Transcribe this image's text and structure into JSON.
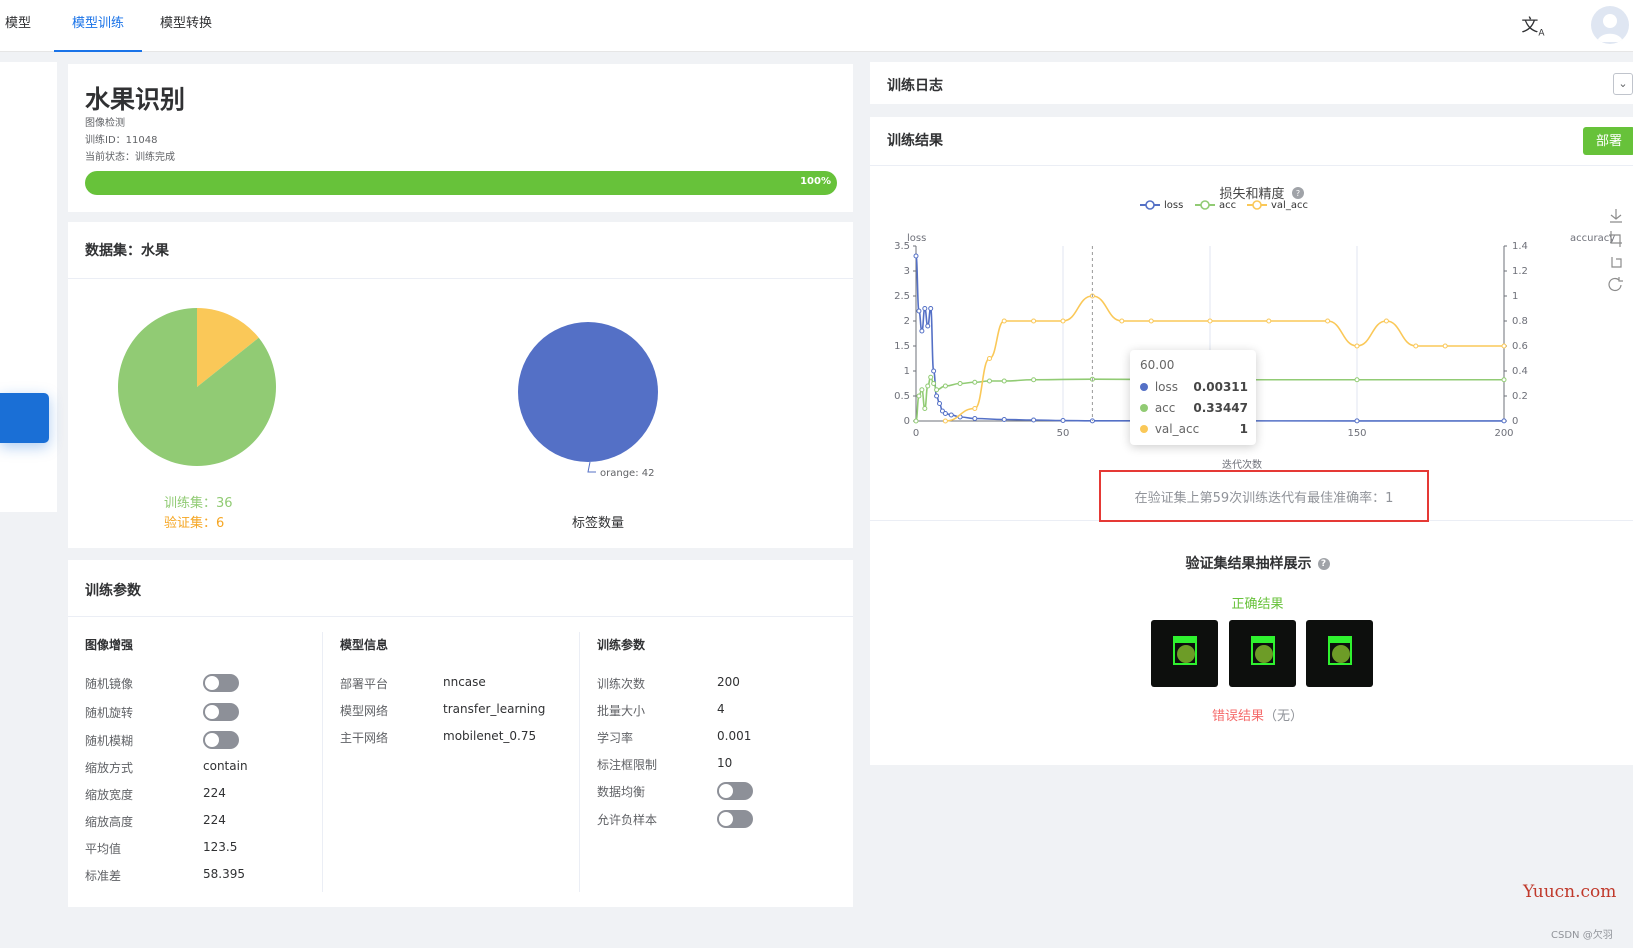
{
  "nav": {
    "tabs": [
      {
        "label": "模型库"
      },
      {
        "label": "模型训练",
        "active": true
      },
      {
        "label": "模型转换"
      }
    ],
    "lang_icon": "translate-icon",
    "avatar_icon": "user-avatar-icon"
  },
  "project": {
    "title": "水果识别",
    "type": "图像检测",
    "train_id": "训练ID：11048",
    "status": "当前状态：训练完成",
    "progress_pct": 100,
    "progress_label": "100%",
    "progress_color": "#67c23a"
  },
  "dataset": {
    "title": "数据集：水果",
    "split_pie": {
      "train": 36,
      "val": 6
    },
    "train_label": "训练集：36",
    "val_label": "验证集：6",
    "label_pie": {
      "slice_label": "orange: 42",
      "value": 42
    },
    "label_chart_title": "标签数量",
    "colors": {
      "train": "#91cb74",
      "val": "#fac858",
      "orange": "#5470c6"
    }
  },
  "params": {
    "title": "训练参数",
    "augment": {
      "title": "图像增强",
      "rows": [
        {
          "label": "随机镜像",
          "toggle": false
        },
        {
          "label": "随机旋转",
          "toggle": false
        },
        {
          "label": "随机模糊",
          "toggle": false
        },
        {
          "label": "缩放方式",
          "value": "contain"
        },
        {
          "label": "缩放宽度",
          "value": "224"
        },
        {
          "label": "缩放高度",
          "value": "224"
        },
        {
          "label": "平均值",
          "value": "123.5"
        },
        {
          "label": "标准差",
          "value": "58.395"
        }
      ]
    },
    "model": {
      "title": "模型信息",
      "rows": [
        {
          "label": "部署平台",
          "value": "nncase"
        },
        {
          "label": "模型网络",
          "value": "transfer_learning"
        },
        {
          "label": "主干网络",
          "value": "mobilenet_0.75"
        }
      ]
    },
    "train": {
      "title": "训练参数",
      "rows": [
        {
          "label": "训练次数",
          "value": "200"
        },
        {
          "label": "批量大小",
          "value": "4"
        },
        {
          "label": "学习率",
          "value": "0.001"
        },
        {
          "label": "标注框限制",
          "value": "10"
        },
        {
          "label": "数据均衡",
          "toggle": false
        },
        {
          "label": "允许负样本",
          "toggle": false
        }
      ]
    }
  },
  "log": {
    "title": "训练日志"
  },
  "result": {
    "title": "训练结果",
    "deploy_label": "部署",
    "best_text": "在验证集上第59次训练迭代有最佳准确率：1",
    "sample_title": "验证集结果抽样展示",
    "correct_label": "正确结果",
    "wrong_label": "错误结果",
    "wrong_suffix": "（无）"
  },
  "chart_data": {
    "type": "line",
    "title": "损失和精度",
    "xlabel": "迭代次数",
    "ylabel_left": "loss",
    "ylabel_right": "accuracy",
    "xlim": [
      0,
      200
    ],
    "ylim_left": [
      0,
      3.5
    ],
    "ylim_right": [
      0,
      1.4
    ],
    "x_ticks": [
      "0",
      "50",
      "100",
      "150",
      "200"
    ],
    "y_ticks_left": [
      "0",
      "0.5",
      "1",
      "1.5",
      "2",
      "2.5",
      "3",
      "3.5"
    ],
    "y_ticks_right": [
      "0",
      "0.2",
      "0.4",
      "0.6",
      "0.8",
      "1",
      "1.2",
      "1.4"
    ],
    "legend": [
      "loss",
      "acc",
      "val_acc"
    ],
    "series": [
      {
        "name": "loss",
        "axis": "left",
        "color": "#5470c6",
        "points": [
          [
            0,
            3.3
          ],
          [
            1,
            2.2
          ],
          [
            2,
            1.8
          ],
          [
            3,
            2.25
          ],
          [
            4,
            1.9
          ],
          [
            5,
            2.25
          ],
          [
            6,
            1.0
          ],
          [
            7,
            0.5
          ],
          [
            8,
            0.35
          ],
          [
            9,
            0.2
          ],
          [
            10,
            0.15
          ],
          [
            12,
            0.12
          ],
          [
            15,
            0.08
          ],
          [
            20,
            0.05
          ],
          [
            30,
            0.03
          ],
          [
            40,
            0.02
          ],
          [
            50,
            0.01
          ],
          [
            60,
            0.003
          ],
          [
            100,
            0.003
          ],
          [
            150,
            0.002
          ],
          [
            200,
            0.002
          ]
        ]
      },
      {
        "name": "acc",
        "axis": "right",
        "color": "#91cb74",
        "points": [
          [
            0,
            0.0
          ],
          [
            1,
            0.2
          ],
          [
            2,
            0.25
          ],
          [
            3,
            0.1
          ],
          [
            4,
            0.28
          ],
          [
            5,
            0.35
          ],
          [
            6,
            0.3
          ],
          [
            7,
            0.25
          ],
          [
            10,
            0.28
          ],
          [
            15,
            0.3
          ],
          [
            20,
            0.31
          ],
          [
            25,
            0.32
          ],
          [
            30,
            0.32
          ],
          [
            40,
            0.33
          ],
          [
            60,
            0.33447
          ],
          [
            100,
            0.33
          ],
          [
            150,
            0.33
          ],
          [
            200,
            0.33
          ]
        ]
      },
      {
        "name": "val_acc",
        "axis": "right",
        "color": "#fac858",
        "points": [
          [
            10,
            0.0
          ],
          [
            20,
            0.1
          ],
          [
            25,
            0.5
          ],
          [
            30,
            0.8
          ],
          [
            40,
            0.8
          ],
          [
            50,
            0.8
          ],
          [
            60,
            1.0
          ],
          [
            70,
            0.8
          ],
          [
            80,
            0.8
          ],
          [
            100,
            0.8
          ],
          [
            120,
            0.8
          ],
          [
            140,
            0.8
          ],
          [
            150,
            0.6
          ],
          [
            160,
            0.8
          ],
          [
            170,
            0.6
          ],
          [
            180,
            0.6
          ],
          [
            200,
            0.6
          ]
        ]
      }
    ],
    "tooltip": {
      "x": "60.00",
      "loss": "0.00311",
      "acc": "0.33447",
      "val_acc": "1"
    }
  },
  "watermark": "Yuucn.com",
  "credit": "CSDN @欠羽"
}
